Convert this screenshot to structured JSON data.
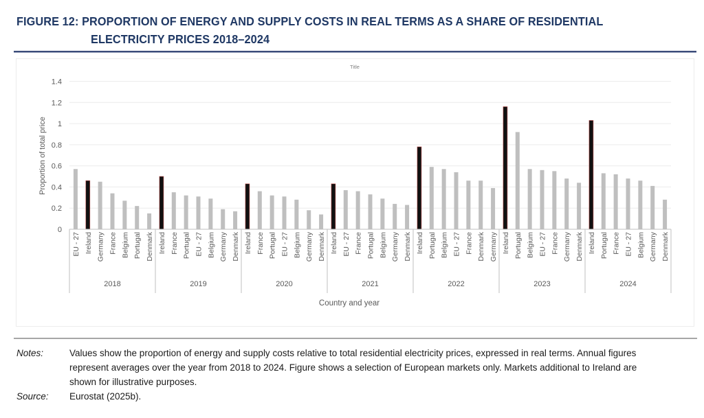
{
  "figure": {
    "title_line1": "FIGURE 12: PROPORTION OF ENERGY AND SUPPLY COSTS IN REAL TERMS AS A SHARE OF RESIDENTIAL",
    "title_line2": "ELECTRICITY PRICES 2018–2024"
  },
  "notes": {
    "notes_label": "Notes:",
    "notes_text": "Values show the proportion of energy and supply costs relative to total residential electricity prices, expressed in real terms. Annual figures represent averages over the year from 2018 to 2024. Figure shows a selection of European markets only. Markets additional to Ireland are shown for illustrative purposes.",
    "source_label": "Source:",
    "source_text": "Eurostat (2025b)."
  },
  "colors": {
    "highlight": "#111111",
    "highlight_outline": "#c0504d",
    "default_bar": "#bfbfbf",
    "title": "#1f3864"
  },
  "chart_data": {
    "type": "bar",
    "title": "Title",
    "xlabel": "Country and year",
    "ylabel": "Proportion of total price",
    "ylim": [
      0,
      1.4
    ],
    "yticks": [
      "0",
      "0.2",
      "0.4",
      "0.6",
      "0.8",
      "1",
      "1.2",
      "1.4"
    ],
    "ytick_values": [
      0,
      0.2,
      0.4,
      0.6,
      0.8,
      1.0,
      1.2,
      1.4
    ],
    "grid": true,
    "legend": "none",
    "highlight_category": "Ireland",
    "groups": [
      {
        "year": "2018",
        "countries": [
          "EU - 27",
          "Ireland",
          "Germany",
          "France",
          "Belgium",
          "Portugal",
          "Denmark"
        ],
        "values": [
          0.57,
          0.46,
          0.45,
          0.34,
          0.27,
          0.22,
          0.15
        ]
      },
      {
        "year": "2019",
        "countries": [
          "Ireland",
          "France",
          "Portugal",
          "EU - 27",
          "Belgium",
          "Germany",
          "Denmark"
        ],
        "values": [
          0.5,
          0.35,
          0.32,
          0.31,
          0.29,
          0.19,
          0.17
        ]
      },
      {
        "year": "2020",
        "countries": [
          "Ireland",
          "France",
          "Portugal",
          "EU - 27",
          "Belgium",
          "Germany",
          "Denmark"
        ],
        "values": [
          0.43,
          0.36,
          0.32,
          0.31,
          0.28,
          0.18,
          0.14
        ]
      },
      {
        "year": "2021",
        "countries": [
          "Ireland",
          "EU - 27",
          "France",
          "Portugal",
          "Belgium",
          "Germany",
          "Denmark"
        ],
        "values": [
          0.43,
          0.37,
          0.36,
          0.33,
          0.29,
          0.24,
          0.23
        ]
      },
      {
        "year": "2022",
        "countries": [
          "Ireland",
          "Portugal",
          "Belgium",
          "EU - 27",
          "France",
          "Denmark",
          "Germany"
        ],
        "values": [
          0.78,
          0.59,
          0.57,
          0.54,
          0.46,
          0.46,
          0.39
        ]
      },
      {
        "year": "2023",
        "countries": [
          "Ireland",
          "Portugal",
          "Belgium",
          "EU - 27",
          "France",
          "Germany",
          "Denmark"
        ],
        "values": [
          1.16,
          0.92,
          0.57,
          0.56,
          0.55,
          0.48,
          0.44
        ]
      },
      {
        "year": "2024",
        "countries": [
          "Ireland",
          "Portugal",
          "France",
          "EU - 27",
          "Belgium",
          "Germany",
          "Denmark"
        ],
        "values": [
          1.03,
          0.53,
          0.52,
          0.48,
          0.46,
          0.41,
          0.28
        ]
      }
    ]
  }
}
